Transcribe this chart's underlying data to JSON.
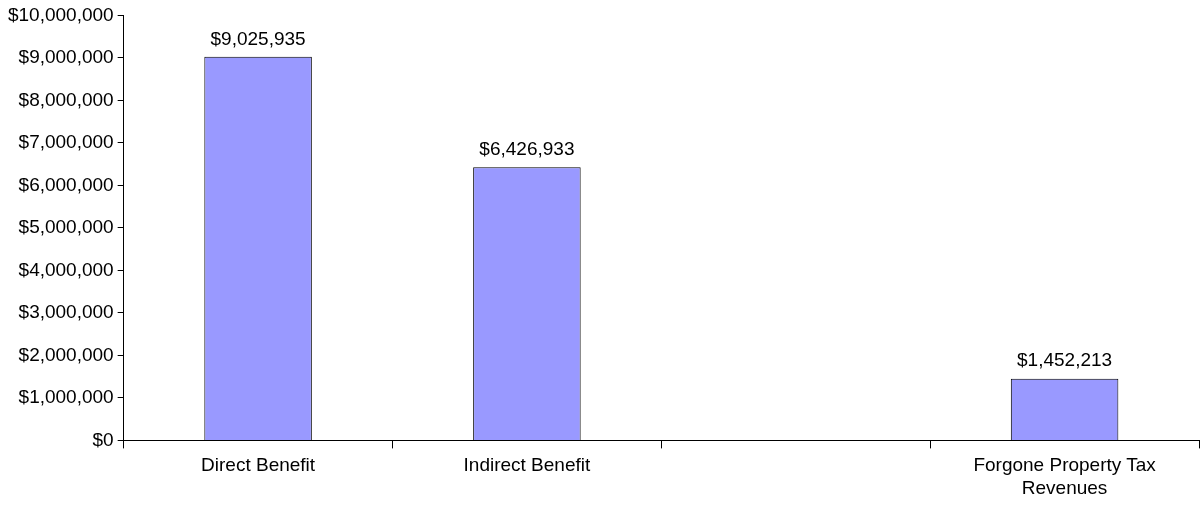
{
  "chart_data": {
    "type": "bar",
    "categories": [
      "Direct Benefit",
      "Indirect Benefit",
      null,
      "Forgone Property Tax Revenues"
    ],
    "series": [
      {
        "color": "#9999ff",
        "values": [
          9025935,
          6426933,
          null,
          1452213
        ],
        "value_labels": [
          "$9,025,935",
          "$6,426,933",
          null,
          "$1,452,213"
        ]
      }
    ],
    "ylim": [
      0,
      10000000
    ],
    "yticks": [
      {
        "value": 0,
        "label": "$0"
      },
      {
        "value": 1000000,
        "label": "$1,000,000"
      },
      {
        "value": 2000000,
        "label": "$2,000,000"
      },
      {
        "value": 3000000,
        "label": "$3,000,000"
      },
      {
        "value": 4000000,
        "label": "$4,000,000"
      },
      {
        "value": 5000000,
        "label": "$5,000,000"
      },
      {
        "value": 6000000,
        "label": "$6,000,000"
      },
      {
        "value": 7000000,
        "label": "$7,000,000"
      },
      {
        "value": 8000000,
        "label": "$8,000,000"
      },
      {
        "value": 9000000,
        "label": "$9,000,000"
      },
      {
        "value": 10000000,
        "label": "$10,000,000"
      }
    ],
    "grid": false,
    "legend": false
  }
}
